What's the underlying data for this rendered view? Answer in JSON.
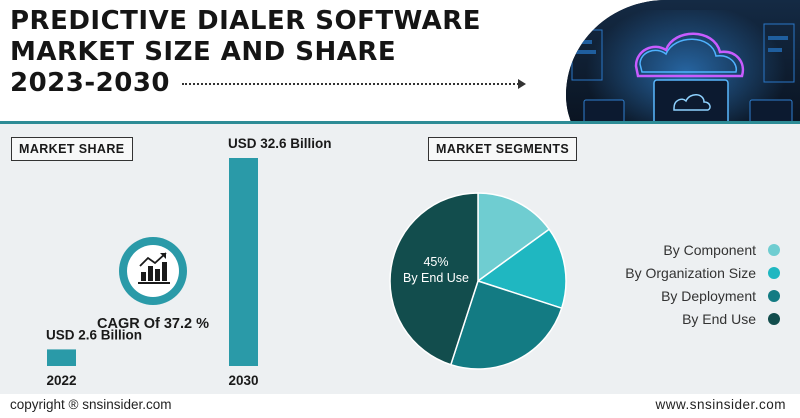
{
  "title": {
    "line1": "PREDICTIVE DIALER SOFTWARE",
    "line2": "MARKET SIZE AND SHARE",
    "line3": "2023-2030"
  },
  "market_share": {
    "label": "MARKET SHARE",
    "cagr_label": "CAGR Of 37.2 %"
  },
  "market_segments": {
    "label": "MARKET SEGMENTS"
  },
  "footer": {
    "copyright": "copyright ® snsinsider.com",
    "website": "www.snsinsider.com"
  },
  "colors": {
    "teal": "#2a9aa8",
    "dark_teal": "#13504f",
    "accent_border": "#2d8c96"
  },
  "icons": [
    "cloud-computing-image",
    "bar-chart-icon",
    "arrow-right-icon"
  ],
  "chart_data": [
    {
      "type": "bar",
      "categories": [
        "2022",
        "2030"
      ],
      "values": [
        2.6,
        32.6
      ],
      "value_labels": [
        "USD 2.6 Billion",
        "USD 32.6 Billion"
      ],
      "units": "USD Billion",
      "title": "",
      "xlabel": "",
      "ylabel": ""
    },
    {
      "type": "pie",
      "categories": [
        "By Component",
        "By Organization Size",
        "By Deployment",
        "By End Use"
      ],
      "values": [
        15,
        15,
        25,
        45
      ],
      "labeled_slice": {
        "category": "By End Use",
        "text": "45%",
        "subtext": "By End Use"
      },
      "colors": [
        "#6fcdd1",
        "#1fb7c1",
        "#137b83",
        "#124d4d"
      ],
      "legend_position": "right"
    }
  ]
}
